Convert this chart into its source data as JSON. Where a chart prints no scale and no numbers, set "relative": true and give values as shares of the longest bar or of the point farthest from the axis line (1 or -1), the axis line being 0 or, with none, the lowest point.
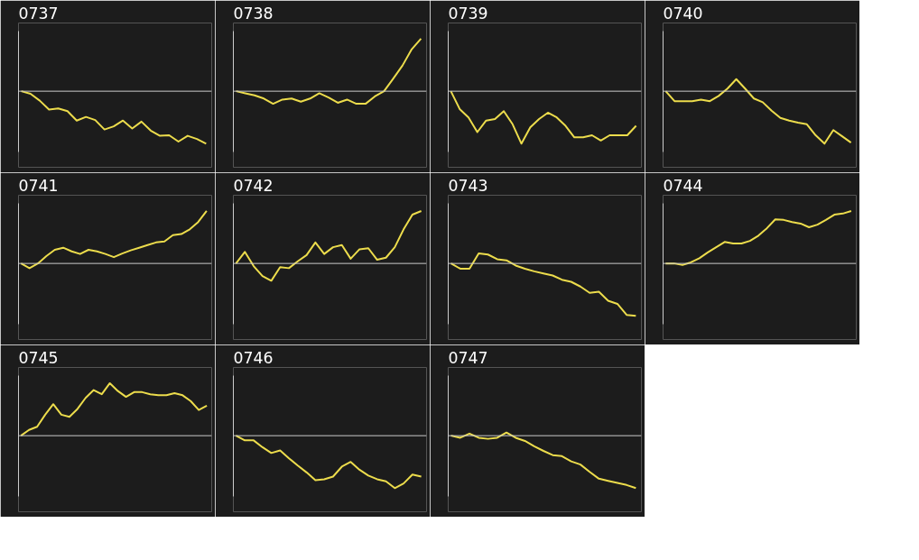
{
  "chart_data": [
    {
      "type": "line",
      "title": "0737",
      "relative": true,
      "color": "#ecdc4c",
      "categories": [
        null,
        null,
        null,
        null,
        null,
        null,
        null,
        null,
        null,
        null,
        null,
        null,
        null,
        null,
        null,
        null,
        null,
        null,
        null,
        null,
        null
      ],
      "values": [
        0,
        -0.05,
        -0.18,
        -0.35,
        -0.33,
        -0.38,
        -0.56,
        -0.49,
        -0.55,
        -0.73,
        -0.67,
        -0.56,
        -0.71,
        -0.58,
        -0.75,
        -0.85,
        -0.84,
        -0.96,
        -0.85,
        -0.91,
        -1
      ]
    },
    {
      "type": "line",
      "title": "0738",
      "relative": true,
      "color": "#ecdc4c",
      "categories": [
        null,
        null,
        null,
        null,
        null,
        null,
        null,
        null,
        null,
        null,
        null,
        null,
        null,
        null,
        null,
        null,
        null,
        null,
        null,
        null,
        null
      ],
      "values": [
        0,
        -0.04,
        -0.08,
        -0.14,
        -0.24,
        -0.16,
        -0.14,
        -0.2,
        -0.14,
        -0.04,
        -0.12,
        -0.22,
        -0.16,
        -0.24,
        -0.24,
        -0.1,
        0,
        0.24,
        0.49,
        0.8,
        1
      ]
    },
    {
      "type": "line",
      "title": "0739",
      "relative": true,
      "color": "#ecdc4c",
      "categories": [
        null,
        null,
        null,
        null,
        null,
        null,
        null,
        null,
        null,
        null,
        null,
        null,
        null,
        null,
        null,
        null,
        null,
        null,
        null,
        null,
        null,
        null
      ],
      "values": [
        0,
        -0.34,
        -0.5,
        -0.78,
        -0.56,
        -0.53,
        -0.38,
        -0.63,
        -1,
        -0.69,
        -0.53,
        -0.41,
        -0.5,
        -0.66,
        -0.88,
        -0.88,
        -0.84,
        -0.94,
        -0.84,
        -0.84,
        -0.84,
        -0.66
      ]
    },
    {
      "type": "line",
      "title": "0740",
      "relative": true,
      "color": "#ecdc4c",
      "categories": [
        null,
        null,
        null,
        null,
        null,
        null,
        null,
        null,
        null,
        null,
        null,
        null,
        null,
        null,
        null,
        null,
        null,
        null,
        null,
        null,
        null,
        null
      ],
      "values": [
        0,
        -0.19,
        -0.19,
        -0.19,
        -0.16,
        -0.19,
        -0.09,
        0.05,
        0.23,
        0.05,
        -0.14,
        -0.21,
        -0.37,
        -0.51,
        -0.56,
        -0.6,
        -0.63,
        -0.84,
        -1,
        -0.74,
        -0.86,
        -0.98
      ]
    },
    {
      "type": "line",
      "title": "0741",
      "relative": true,
      "color": "#ecdc4c",
      "categories": [
        null,
        null,
        null,
        null,
        null,
        null,
        null,
        null,
        null,
        null,
        null,
        null,
        null,
        null,
        null,
        null,
        null,
        null,
        null,
        null,
        null,
        null,
        null
      ],
      "values": [
        0,
        -0.09,
        0,
        0.14,
        0.26,
        0.3,
        0.23,
        0.18,
        0.26,
        0.23,
        0.18,
        0.12,
        0.19,
        0.25,
        0.3,
        0.35,
        0.4,
        0.42,
        0.54,
        0.56,
        0.65,
        0.79,
        1
      ]
    },
    {
      "type": "line",
      "title": "0742",
      "relative": true,
      "color": "#ecdc4c",
      "categories": [
        null,
        null,
        null,
        null,
        null,
        null,
        null,
        null,
        null,
        null,
        null,
        null,
        null,
        null,
        null,
        null,
        null,
        null,
        null,
        null,
        null,
        null
      ],
      "values": [
        0,
        0.22,
        -0.05,
        -0.24,
        -0.33,
        -0.07,
        -0.09,
        0.04,
        0.16,
        0.4,
        0.18,
        0.31,
        0.35,
        0.09,
        0.27,
        0.29,
        0.07,
        0.11,
        0.31,
        0.65,
        0.93,
        1
      ]
    },
    {
      "type": "line",
      "title": "0743",
      "relative": true,
      "color": "#ecdc4c",
      "categories": [
        null,
        null,
        null,
        null,
        null,
        null,
        null,
        null,
        null,
        null,
        null,
        null,
        null,
        null,
        null,
        null,
        null,
        null,
        null,
        null,
        null
      ],
      "values": [
        0,
        -0.1,
        -0.1,
        0.19,
        0.17,
        0.08,
        0.06,
        -0.04,
        -0.1,
        -0.15,
        -0.19,
        -0.23,
        -0.31,
        -0.35,
        -0.44,
        -0.56,
        -0.54,
        -0.71,
        -0.77,
        -0.98,
        -1
      ]
    },
    {
      "type": "line",
      "title": "0744",
      "relative": true,
      "color": "#ecdc4c",
      "categories": [
        null,
        null,
        null,
        null,
        null,
        null,
        null,
        null,
        null,
        null,
        null,
        null,
        null,
        null,
        null,
        null,
        null,
        null,
        null,
        null,
        null,
        null,
        null
      ],
      "values": [
        0,
        0,
        -0.03,
        0.02,
        0.1,
        0.21,
        0.31,
        0.41,
        0.38,
        0.38,
        0.43,
        0.53,
        0.67,
        0.84,
        0.83,
        0.79,
        0.76,
        0.69,
        0.74,
        0.83,
        0.93,
        0.95,
        1
      ]
    },
    {
      "type": "line",
      "title": "0745",
      "relative": true,
      "color": "#ecdc4c",
      "categories": [
        null,
        null,
        null,
        null,
        null,
        null,
        null,
        null,
        null,
        null,
        null,
        null,
        null,
        null,
        null,
        null,
        null,
        null,
        null,
        null,
        null,
        null,
        null,
        null
      ],
      "values": [
        0,
        0.11,
        0.17,
        0.4,
        0.6,
        0.4,
        0.36,
        0.51,
        0.72,
        0.87,
        0.79,
        1,
        0.85,
        0.74,
        0.83,
        0.83,
        0.79,
        0.77,
        0.77,
        0.81,
        0.77,
        0.66,
        0.49,
        0.57
      ]
    },
    {
      "type": "line",
      "title": "0746",
      "relative": true,
      "color": "#ecdc4c",
      "categories": [
        null,
        null,
        null,
        null,
        null,
        null,
        null,
        null,
        null,
        null,
        null,
        null,
        null,
        null,
        null,
        null,
        null,
        null,
        null,
        null,
        null,
        null
      ],
      "values": [
        0,
        -0.09,
        -0.09,
        -0.22,
        -0.33,
        -0.28,
        -0.43,
        -0.57,
        -0.7,
        -0.85,
        -0.83,
        -0.78,
        -0.59,
        -0.5,
        -0.65,
        -0.76,
        -0.83,
        -0.87,
        -1,
        -0.91,
        -0.74,
        -0.78
      ]
    },
    {
      "type": "line",
      "title": "0747",
      "relative": true,
      "color": "#ecdc4c",
      "categories": [
        null,
        null,
        null,
        null,
        null,
        null,
        null,
        null,
        null,
        null,
        null,
        null,
        null,
        null,
        null,
        null,
        null,
        null,
        null,
        null,
        null
      ],
      "values": [
        0,
        -0.04,
        0.04,
        -0.04,
        -0.06,
        -0.04,
        0.06,
        -0.04,
        -0.1,
        -0.2,
        -0.29,
        -0.37,
        -0.39,
        -0.49,
        -0.55,
        -0.69,
        -0.82,
        -0.86,
        -0.9,
        -0.94,
        -1
      ]
    }
  ]
}
